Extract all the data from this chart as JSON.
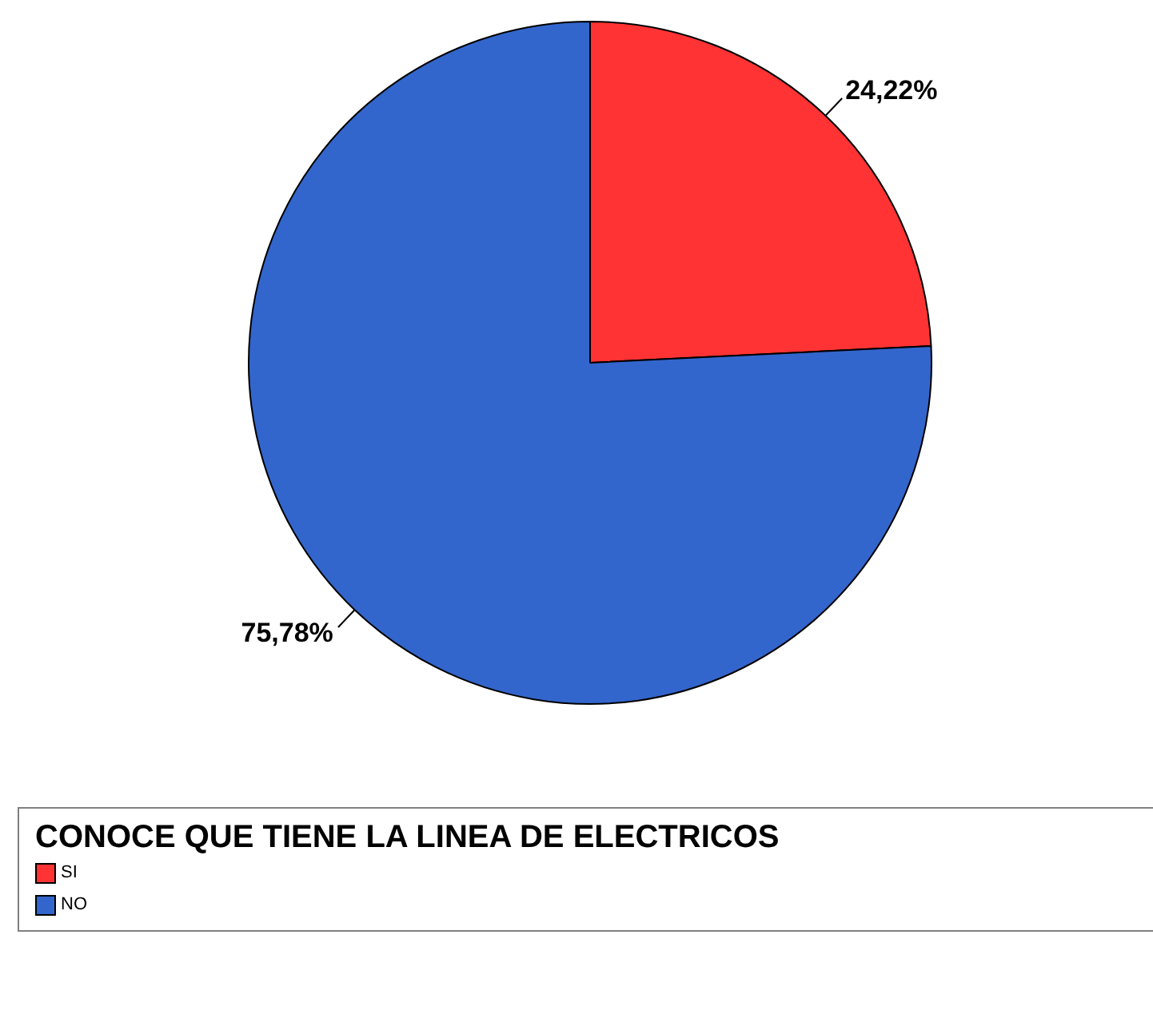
{
  "chart_data": {
    "type": "pie",
    "categories": [
      "SI",
      "NO"
    ],
    "values": [
      24.22,
      75.78
    ],
    "colors": [
      "#ff3333",
      "#3366cc"
    ],
    "value_labels": [
      "24,22%",
      "75,78%"
    ],
    "legend": "bottom",
    "legend_title": "CONOCE QUE TIENE LA LINEA DE ELECTRICOS"
  }
}
